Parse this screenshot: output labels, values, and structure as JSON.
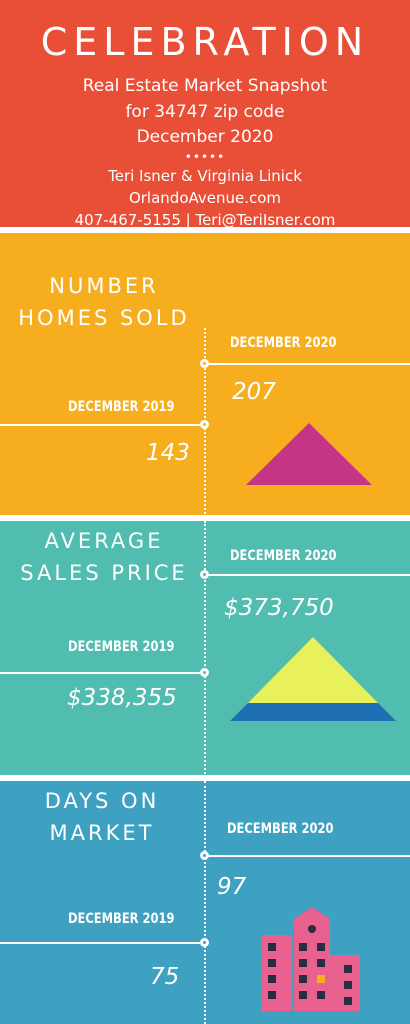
{
  "header": {
    "title": "CELEBRATION",
    "subtitle": "Real Estate Market Snapshot",
    "zip_line": "for 34747 zip code",
    "period": "December 2020",
    "dots": "•••••",
    "agents": "Teri Isner & Virginia Linick",
    "website": "OrlandoAvenue.com",
    "contact": "407-467-5155 | Teri@TeriIsner.com"
  },
  "sections": [
    {
      "title_line1": "NUMBER",
      "title_line2": "HOMES SOLD",
      "current_label": "DECEMBER 2020",
      "current_value": "207",
      "previous_label": "DECEMBER 2019",
      "previous_value": "143",
      "icon": "triangle-icon",
      "color": "#f6ae1e"
    },
    {
      "title_line1": "AVERAGE",
      "title_line2": "SALES PRICE",
      "current_label": "DECEMBER 2020",
      "current_value": "$373,750",
      "previous_label": "DECEMBER 2019",
      "previous_value": "$338,355",
      "icon": "pyramid-icon",
      "color": "#51bdb0"
    },
    {
      "title_line1": "DAYS ON",
      "title_line2": "MARKET",
      "current_label": "DECEMBER 2020",
      "current_value": "97",
      "previous_label": "DECEMBER 2019",
      "previous_value": "75",
      "icon": "building-icon",
      "color": "#3ea1c2"
    }
  ],
  "colors": {
    "header": "#e94e37",
    "magenta": "#c63585",
    "yellow": "#e8f05c",
    "blue": "#1f6fb5",
    "pink": "#e9628f",
    "dark": "#2a2d3f",
    "orange": "#f6ae1e"
  }
}
